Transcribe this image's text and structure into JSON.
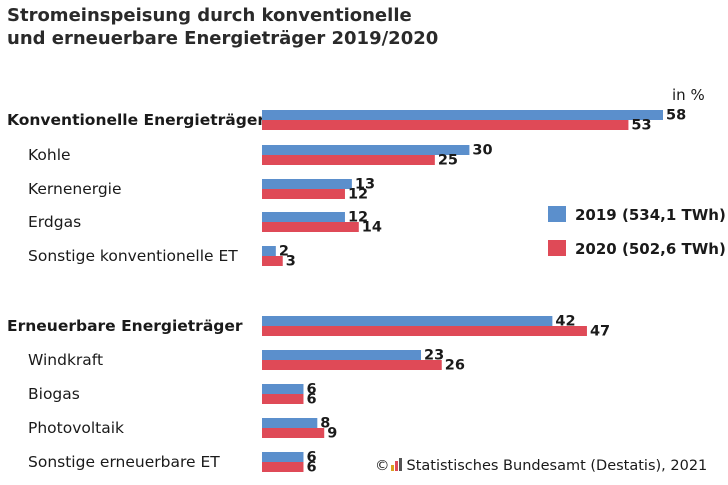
{
  "title_line1": "Stromeinspeisung durch konventionelle",
  "title_line2": "und erneuerbare Energieträger 2019/2020",
  "unit": "in %",
  "source": {
    "prefix": "©",
    "text": "Statistisches Bundesamt (Destatis), 2021",
    "icon": "destatis-logo-icon"
  },
  "colors": {
    "s2019": "#5b8fcc",
    "s2020": "#df4a57"
  },
  "chart_data": {
    "type": "bar",
    "orientation": "horizontal",
    "categories": [
      "Konventionelle Energieträger",
      "Kohle",
      "Kernenergie",
      "Erdgas",
      "Sonstige konventionelle ET",
      "Erneuerbare Energieträger",
      "Windkraft",
      "Biogas",
      "Photovoltaik",
      "Sonstige erneuerbare ET"
    ],
    "category_bold": [
      true,
      false,
      false,
      false,
      false,
      true,
      false,
      false,
      false,
      false
    ],
    "series": [
      {
        "name": "2019 (534,1 TWh)",
        "values": [
          58,
          30,
          13,
          12,
          2,
          42,
          23,
          6,
          8,
          6
        ]
      },
      {
        "name": "2020 (502,6 TWh)",
        "values": [
          53,
          25,
          12,
          14,
          3,
          47,
          26,
          6,
          9,
          6
        ]
      }
    ],
    "xlim": [
      0,
      58
    ],
    "grid": false,
    "legend_position": "right"
  }
}
